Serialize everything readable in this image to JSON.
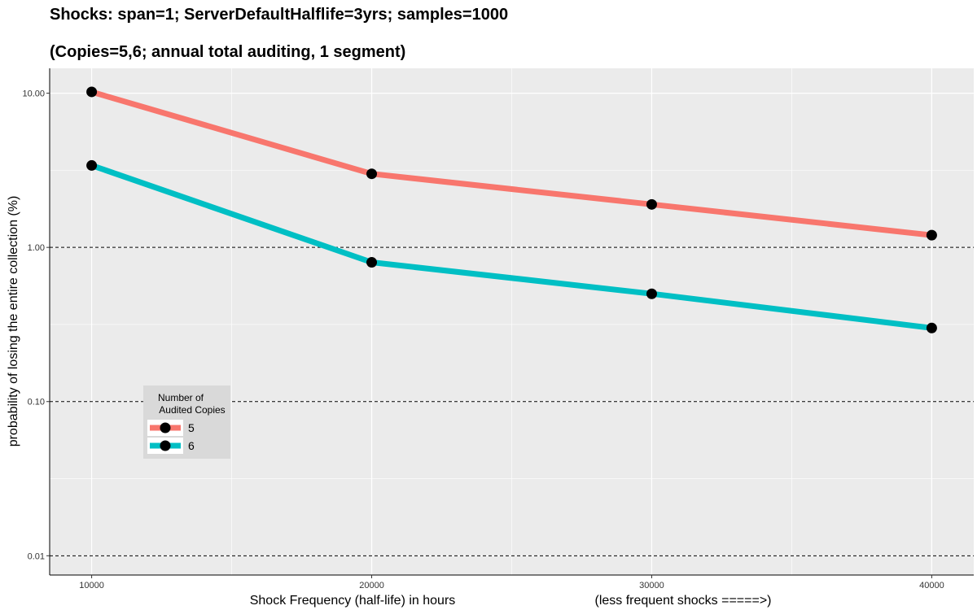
{
  "chart_data": {
    "type": "line",
    "title": "Shocks: span=1; ServerDefaultHalflife=3yrs; samples=1000",
    "subtitle": "(Copies=5,6; annual total auditing, 1 segment)",
    "xlabel": "Shock Frequency (half-life) in hours",
    "xlabel_note": "(less frequent shocks =====>)",
    "ylabel": "probability of losing the entire collection (%)",
    "y_scale": "log10",
    "grid": true,
    "xlim": [
      8500,
      41500
    ],
    "ylim": [
      0.0075,
      14.5
    ],
    "x_ticks": [
      10000,
      20000,
      30000,
      40000
    ],
    "x_tick_labels": [
      "10000",
      "20000",
      "30000",
      "40000"
    ],
    "y_ticks": [
      0.01,
      0.1,
      1,
      10
    ],
    "y_tick_labels": [
      "0.01",
      "0.10",
      "1.00",
      "10.00"
    ],
    "reference_lines_y": [
      0.01,
      0.1,
      1
    ],
    "x": [
      10000,
      20000,
      30000,
      40000
    ],
    "series": [
      {
        "name": "5",
        "color": "#F8766D",
        "values": [
          10.2,
          3.0,
          1.9,
          1.2
        ]
      },
      {
        "name": "6",
        "color": "#00BFC4",
        "values": [
          3.4,
          0.8,
          0.5,
          0.3
        ]
      }
    ],
    "legend": {
      "title_line1": "Number of",
      "title_line2": "Audited Copies",
      "placement": "bottom-left inside plot"
    }
  }
}
